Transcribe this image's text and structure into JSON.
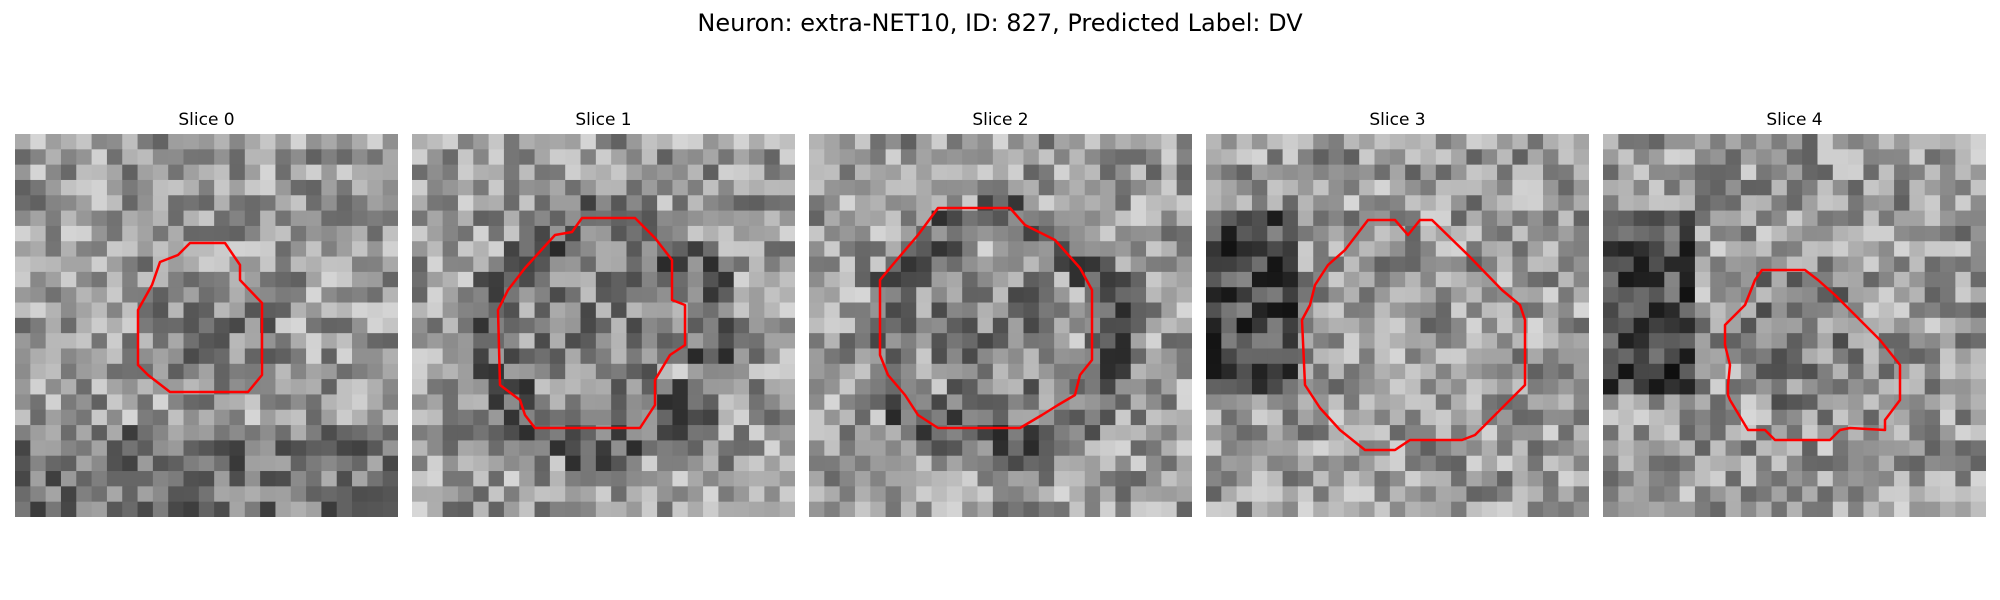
{
  "figure": {
    "title": "Neuron: extra-NET10, ID: 827, Predicted Label: DV",
    "outline_color": "#ff0000",
    "colormap": "grayscale"
  },
  "slices": [
    {
      "title": "Slice 0"
    },
    {
      "title": "Slice 1"
    },
    {
      "title": "Slice 2"
    },
    {
      "title": "Slice 3"
    },
    {
      "title": "Slice 4"
    }
  ]
}
